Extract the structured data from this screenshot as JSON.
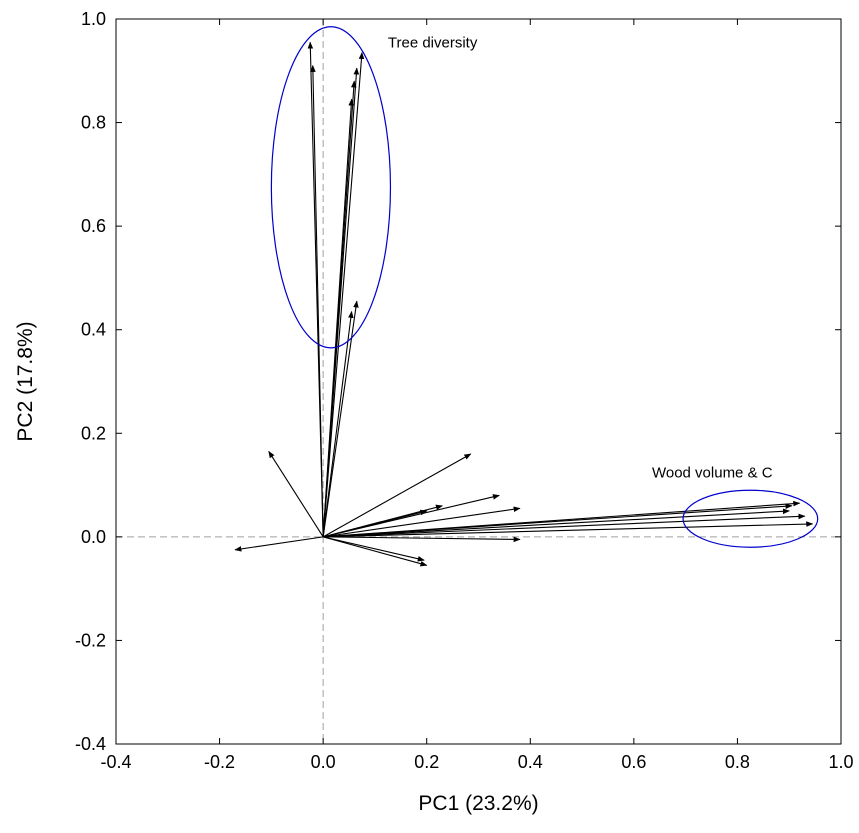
{
  "chart_data": {
    "type": "biplot",
    "xlabel": "PC1 (23.2%)",
    "ylabel": "PC2 (17.8%)",
    "xlim": [
      -0.4,
      1.0
    ],
    "ylim": [
      -0.4,
      1.0
    ],
    "xticks": [
      -0.4,
      -0.2,
      0.0,
      0.2,
      0.4,
      0.6,
      0.8,
      1.0
    ],
    "yticks": [
      -0.4,
      -0.2,
      0.0,
      0.2,
      0.4,
      0.6,
      0.8,
      1.0
    ],
    "x_tick_labels": [
      "-0.4",
      "-0.2",
      "0.0",
      "0.2",
      "0.4",
      "0.6",
      "0.8",
      "1.0"
    ],
    "y_tick_labels": [
      "-0.4",
      "-0.2",
      "0.0",
      "0.2",
      "0.4",
      "0.6",
      "0.8",
      "1.0"
    ],
    "origin_lines": true,
    "colors": {
      "arrows": "#000000",
      "ellipses": "#0000cc",
      "reference_lines": "#a0a0a0"
    },
    "loadings": [
      {
        "x": -0.025,
        "y": 0.955
      },
      {
        "x": -0.02,
        "y": 0.91
      },
      {
        "x": 0.075,
        "y": 0.935
      },
      {
        "x": 0.065,
        "y": 0.905
      },
      {
        "x": 0.06,
        "y": 0.88
      },
      {
        "x": 0.055,
        "y": 0.845
      },
      {
        "x": 0.065,
        "y": 0.455
      },
      {
        "x": 0.055,
        "y": 0.435
      },
      {
        "x": -0.105,
        "y": 0.165
      },
      {
        "x": 0.285,
        "y": 0.16
      },
      {
        "x": 0.34,
        "y": 0.08
      },
      {
        "x": 0.23,
        "y": 0.06
      },
      {
        "x": 0.2,
        "y": 0.05
      },
      {
        "x": 0.38,
        "y": 0.055
      },
      {
        "x": 0.92,
        "y": 0.065
      },
      {
        "x": 0.905,
        "y": 0.06
      },
      {
        "x": 0.9,
        "y": 0.05
      },
      {
        "x": 0.93,
        "y": 0.04
      },
      {
        "x": 0.945,
        "y": 0.025
      },
      {
        "x": 0.38,
        "y": -0.005
      },
      {
        "x": 0.195,
        "y": -0.045
      },
      {
        "x": 0.2,
        "y": -0.055
      },
      {
        "x": -0.17,
        "y": -0.025
      }
    ],
    "annotations": [
      {
        "text": "Tree diversity",
        "center": [
          0.015,
          0.675
        ],
        "radius_x": 0.115,
        "radius_y": 0.31,
        "label_at": [
          0.125,
          0.945
        ]
      },
      {
        "text": "Wood volume & C",
        "center": [
          0.825,
          0.035
        ],
        "radius_x": 0.13,
        "radius_y": 0.055,
        "label_at": [
          0.635,
          0.115
        ]
      }
    ]
  }
}
